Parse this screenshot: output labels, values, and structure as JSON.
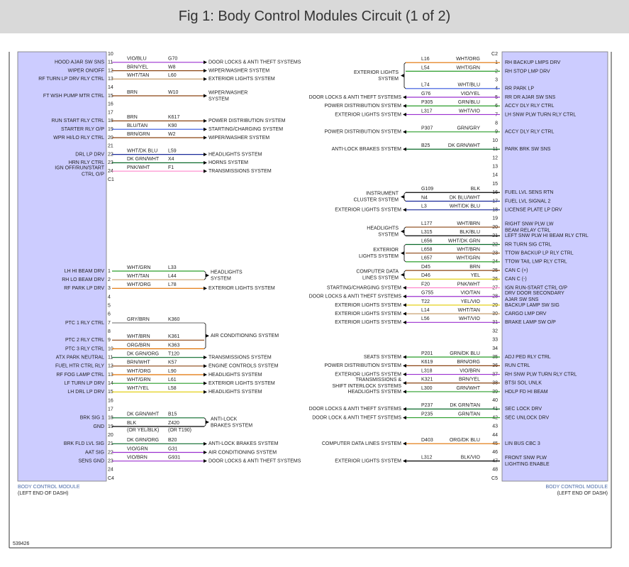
{
  "header": {
    "title": "Fig 1: Body Control Modules Circuit (1 of 2)"
  },
  "left": {
    "module": "BODY CONTROL MODULE",
    "location": "(LEFT END OF DASH)",
    "blocks": [
      {
        "rows": [
          {
            "pin": "10"
          },
          {
            "pin": "11",
            "label": "HOOD AJAR SW SNS",
            "color": "VIO/BLU",
            "circuit": "G70",
            "dest": "DOOR LOCKS & ANTI THEFT SYSTEMS"
          },
          {
            "pin": "12",
            "label": "WIPER ON/OFF",
            "color": "BRN/YEL",
            "circuit": "W8",
            "dest": "WIPER/WASHER SYSTEM"
          },
          {
            "pin": "13",
            "label": "RF TURN LP DRV RLY CTRL",
            "color": "WHT/TAN",
            "circuit": "L60",
            "dest": "EXTERIOR LIGHTS SYSTEM"
          },
          {
            "pin": "14"
          },
          {
            "pin": "15",
            "label": "FT WSH PUMP MTR CTRL",
            "color": "BRN",
            "circuit": "W10",
            "dest": [
              "WIPER/WASHER",
              "SYSTEM"
            ]
          },
          {
            "pin": "16"
          },
          {
            "pin": "17"
          },
          {
            "pin": "18",
            "label": "RUN START RLY CTRL",
            "color": "BRN",
            "circuit": "K617",
            "dest": "POWER DISTRIBUTION SYSTEM"
          },
          {
            "pin": "19",
            "label": "STARTER RLY O/P",
            "color": "BLU/TAN",
            "circuit": "K90",
            "dest": "STARTING/CHARGING SYSTEM"
          },
          {
            "pin": "20",
            "label": "WPR HI/LO RLY CTRL",
            "color": "BRN/GRN",
            "circuit": "W2",
            "dest": "WIPER/WASHER SYSTEM"
          },
          {
            "pin": "21"
          },
          {
            "pin": "22",
            "label": "DRL LP DRV",
            "color": "WHT/DK BLU",
            "circuit": "L59",
            "dest": "HEADLIGHTS SYSTEM"
          },
          {
            "pin": "23",
            "label": "HRN RLY CTRL",
            "color": "DK GRN/WHT",
            "circuit": "X4",
            "dest": "HORNS SYSTEM"
          },
          {
            "pin": "24",
            "label": [
              "IGN OFF/RUN/START",
              "CTRL O/P"
            ],
            "color": "PNK/WHT",
            "circuit": "F1",
            "dest": "TRANSMISSIONS SYSTEM"
          }
        ],
        "bottom": "C1"
      },
      {
        "rows": [
          {
            "dest": [
              "HEADLIGHTS",
              "SYSTEM"
            ],
            "rows": [
              {
                "pin": "1",
                "label": "LH HI BEAM DRV",
                "color": "WHT/GRN",
                "circuit": "L33"
              },
              {
                "pin": "2",
                "label": "RH LO BEAM DRV",
                "color": "WHT/TAN",
                "circuit": "L44"
              }
            ]
          },
          {
            "pin": "3",
            "label": "RF PARK LP DRV",
            "color": "WHT/ORG",
            "circuit": "L78",
            "dest": "EXTERIOR LIGHTS SYSTEM"
          },
          {
            "pin": "4"
          },
          {
            "pin": "5"
          },
          {
            "pin": "6"
          },
          {
            "dest": "AIR CONDITIONING SYSTEM",
            "rows": [
              {
                "pin": "7",
                "label": "PTC 1 RLY CTRL",
                "color": "GRY/BRN",
                "circuit": "K360"
              },
              {
                "pin": "8"
              },
              {
                "pin": "9",
                "label": "PTC 2 RLY CTRL",
                "color": "WHT/BRN",
                "circuit": "K361"
              },
              {
                "pin": "10",
                "label": "PTC 3 RLY CTRL",
                "color": "ORG/BRN",
                "circuit": "K363"
              }
            ]
          },
          {
            "pin": "11",
            "label": "ATX PARK NEUTRAL",
            "color": "DK GRN/ORG",
            "circuit": "T120",
            "dest": "TRANSMISSIONS SYSTEM"
          },
          {
            "pin": "12",
            "label": "FUEL HTR CTRL RLY",
            "color": "BRN/WHT",
            "circuit": "K57",
            "dest": "ENGINE CONTROLS SYSTEM"
          },
          {
            "pin": "13",
            "label": "RF FOG LAMP CTRL",
            "color": "WHT/ORG",
            "circuit": "L90",
            "dest": "HEADLIGHTS SYSTEM"
          },
          {
            "pin": "14",
            "label": "LF TURN LP DRV",
            "color": "WHT/GRN",
            "circuit": "L61",
            "dest": "EXTERIOR LIGHTS SYSTEM"
          },
          {
            "pin": "15",
            "label": "LH DRL LP DRV",
            "color": "WHT/YEL",
            "circuit": "L58",
            "dest": "HEADLIGHTS SYSTEM"
          },
          {
            "pin": "16"
          },
          {
            "pin": "17"
          },
          {
            "dest": [
              "ANTI-LOCK",
              "BRAKES SYSTEM"
            ],
            "rows": [
              {
                "pin": "18",
                "label": "BRK SIG 1",
                "color": "DK GRN/WHT",
                "circuit": "B15"
              },
              {
                "pin": "19",
                "label": "GND",
                "color": [
                  "BLK",
                  "(OR YEL/BLK)"
                ],
                "circuit": [
                  "Z420",
                  "(OR T190)"
                ]
              }
            ]
          },
          {
            "pin": "20"
          },
          {
            "pin": "21",
            "label": "BRK FLD LVL SIG",
            "color": "DK GRN/ORG",
            "circuit": "B20",
            "dest": "ANTI-LOCK BRAKES SYSTEM"
          },
          {
            "pin": "22",
            "label": "AAT SIG",
            "color": "VIO/GRN",
            "circuit": "G31",
            "dest": "AIR CONDITIONING SYSTEM"
          },
          {
            "pin": "23",
            "label": "SENS GND",
            "color": "VIO/BRN",
            "circuit": "G931",
            "dest": "DOOR LOCKS & ANTI THEFT SYSTEMS"
          },
          {
            "pin": "24"
          }
        ],
        "bottom": "C4"
      }
    ]
  },
  "right": {
    "module": "BODY CONTROL MODULE",
    "location": "(LEFT END OF DASH)",
    "blocks": [
      {
        "top": "C2",
        "rows": [
          {
            "dest": [
              "EXTERIOR LIGHTS",
              "SYSTEM"
            ],
            "rows": [
              {
                "pin": "1",
                "label": "RH BACKUP LMPS DRV",
                "circuit": "L16",
                "color": "WHT/ORG"
              },
              {
                "pin": "2",
                "label": "RH STOP LMP DRV",
                "circuit": "L54",
                "color": "WHT/GRN"
              },
              {
                "pin": "3"
              },
              {
                "pin": "4",
                "label": "RR PARK LP",
                "circuit": "L74",
                "color": "WHT/BLU"
              }
            ]
          },
          {
            "pin": "5",
            "label": "RR DR AJAR SW SNS",
            "circuit": "G76",
            "color": "VIO/YEL",
            "dest": "DOOR LOCKS & ANTI THEFT SYSTEMS"
          },
          {
            "pin": "6",
            "label": "ACCY DLY RLY CTRL",
            "circuit": "P305",
            "color": "GRN/BLU",
            "dest": "POWER DISTRIBUTION SYSTEM"
          },
          {
            "pin": "7",
            "label": "LH SNW PLW TURN RLY CTRL",
            "circuit": "L317",
            "color": "WHT/VIO",
            "dest": "EXTERIOR LIGHTS SYSTEM"
          },
          {
            "pin": "8"
          },
          {
            "pin": "9",
            "label": "ACCY DLY RLY CTRL",
            "circuit": "P307",
            "color": "GRN/GRY",
            "dest": "POWER DISTRIBUTION SYSTEM"
          },
          {
            "pin": "10"
          },
          {
            "pin": "11",
            "label": "PARK BRK SW SNS",
            "circuit": "B25",
            "color": "DK GRN/WHT",
            "dest": "ANTI-LOCK BRAKES SYSTEM"
          },
          {
            "pin": "12"
          },
          {
            "pin": "13"
          },
          {
            "pin": "14"
          },
          {
            "pin": "15"
          },
          {
            "dest": [
              "INSTRUMENT",
              "CLUSTER SYSTEM"
            ],
            "rows": [
              {
                "pin": "16",
                "label": "FUEL LVL SENS RTN",
                "circuit": "G109",
                "color": "BLK"
              },
              {
                "pin": "17",
                "label": "FUEL LVL SIGNAL 2",
                "circuit": "N4",
                "color": "DK BLU/WHT"
              }
            ]
          },
          {
            "pin": "18",
            "label": "LICENSE PLATE LP DRV",
            "circuit": "L3",
            "color": "WHT/DK BLU",
            "dest": "EXTERIOR LIGHTS SYSTEM"
          },
          {
            "pin": "19"
          },
          {
            "dest": [
              "HEADLIGHTS",
              "SYSTEM"
            ],
            "rows": [
              {
                "pin": "20",
                "label": [
                  "RIGHT SNW PLW LW",
                  "BEAM RELAY CTRL"
                ],
                "circuit": "L177",
                "color": "WHT/BRN"
              },
              {
                "pin": "21",
                "label": "LEFT SNW PLW HI BEAM RLY CTRL",
                "circuit": "L315",
                "color": "BLK/BLU"
              }
            ]
          },
          {
            "dest": [
              "EXTERIOR",
              "LIGHTS SYSTEM"
            ],
            "rows": [
              {
                "pin": "22",
                "label": "RR TURN SIG CTRL",
                "circuit": "L656",
                "color": "WHT/DK GRN"
              },
              {
                "pin": "23",
                "label": "TTOW BACKUP LP RLY CTRL",
                "circuit": "L658",
                "color": "WHT/BRN"
              },
              {
                "pin": "24",
                "label": "TTOW TAIL LMP RLY CTRL",
                "circuit": "L657",
                "color": "WHT/GRN"
              }
            ]
          },
          {
            "dest": [
              "COMPUTER DATA",
              "LINES SYSTEM"
            ],
            "rows": [
              {
                "pin": "25",
                "label": "CAN C (+)",
                "circuit": "D45",
                "color": "BRN"
              },
              {
                "pin": "26",
                "label": "CAN C (-)",
                "circuit": "D46",
                "color": "YEL"
              }
            ]
          },
          {
            "pin": "27",
            "label": "IGN RUN-START CTRL O/P",
            "circuit": "F20",
            "color": "PNK/WHT",
            "dest": "STARTING/CHARGING SYSTEM"
          },
          {
            "pin": "28",
            "label": [
              "DRV DOOR SECONDARY",
              "AJAR SW SNS"
            ],
            "circuit": "G755",
            "color": "VIO/TAN",
            "dest": "DOOR LOCKS & ANTI THEFT SYSTEMS"
          },
          {
            "pin": "29",
            "label": "BACKUP LAMP SW SIG",
            "circuit": "T22",
            "color": "YEL/VIO",
            "dest": "EXTERIOR LIGHTS SYSTEM"
          },
          {
            "pin": "30",
            "label": "CARGO LMP DRV",
            "circuit": "L14",
            "color": "WHT/TAN",
            "dest": "EXTERIOR LIGHTS SYSTEM"
          },
          {
            "pin": "31",
            "label": "BRAKE LAMP SW O/P",
            "circuit": "L56",
            "color": "WHT/VIO",
            "dest": "EXTERIOR LIGHTS SYSTEM"
          },
          {
            "pin": "32"
          },
          {
            "pin": "33"
          },
          {
            "pin": "34"
          },
          {
            "pin": "35",
            "label": "ADJ PED RLY CTRL",
            "circuit": "P201",
            "color": "GRN/DK BLU",
            "dest": "SEATS SYSTEM"
          },
          {
            "pin": "36",
            "label": "RUN CTRL",
            "circuit": "K619",
            "color": "BRN/ORG",
            "dest": "POWER DISTRIBUTION SYSTEM"
          },
          {
            "pin": "37",
            "label": "RH SNW PLW TURN RLY CTRL",
            "circuit": "L318",
            "color": "VIO/BRN",
            "dest": "EXTERIOR LIGHTS SYSTEM"
          },
          {
            "pin": "38",
            "label": "BTSI SOL UNLK",
            "circuit": "K321",
            "color": "BRN/YEL",
            "dest": [
              "TRANSMISSIONS &",
              "SHIFT INTERLOCK SYSTEMS"
            ]
          },
          {
            "pin": "39",
            "label": "HDLP FD HI BEAM",
            "circuit": "L300",
            "color": "GRN/WHT",
            "dest": "HEADLIGHTS SYSTEM"
          },
          {
            "pin": "40"
          },
          {
            "pin": "41",
            "label": "SEC LOCK DRV",
            "circuit": "P237",
            "color": "DK GRN/TAN",
            "dest": "DOOR LOCKS & ANTI THEFT SYSTEMS"
          },
          {
            "pin": "42",
            "label": "SEC UNLOCK DRV",
            "circuit": "P235",
            "color": "GRN/TAN",
            "dest": "DOOR LOCK & ANTI THEFT SYSTEMS"
          },
          {
            "pin": "43"
          },
          {
            "pin": "44"
          },
          {
            "pin": "45",
            "label": "LIN BUS CBC 3",
            "circuit": "D403",
            "color": "ORG/DK BLU",
            "dest": "COMPUTER DATA LINES SYSTEM"
          },
          {
            "pin": "46"
          },
          {
            "pin": "47",
            "label": [
              "FRONT SNW PLW",
              "LIGHTING ENABLE"
            ],
            "circuit": "L312",
            "color": "BLK/VIO",
            "dest": "EXTERIOR LIGHTS SYSTEM"
          },
          {
            "pin": "48"
          }
        ],
        "bottom": "C5"
      }
    ]
  },
  "figure_id": "539426"
}
